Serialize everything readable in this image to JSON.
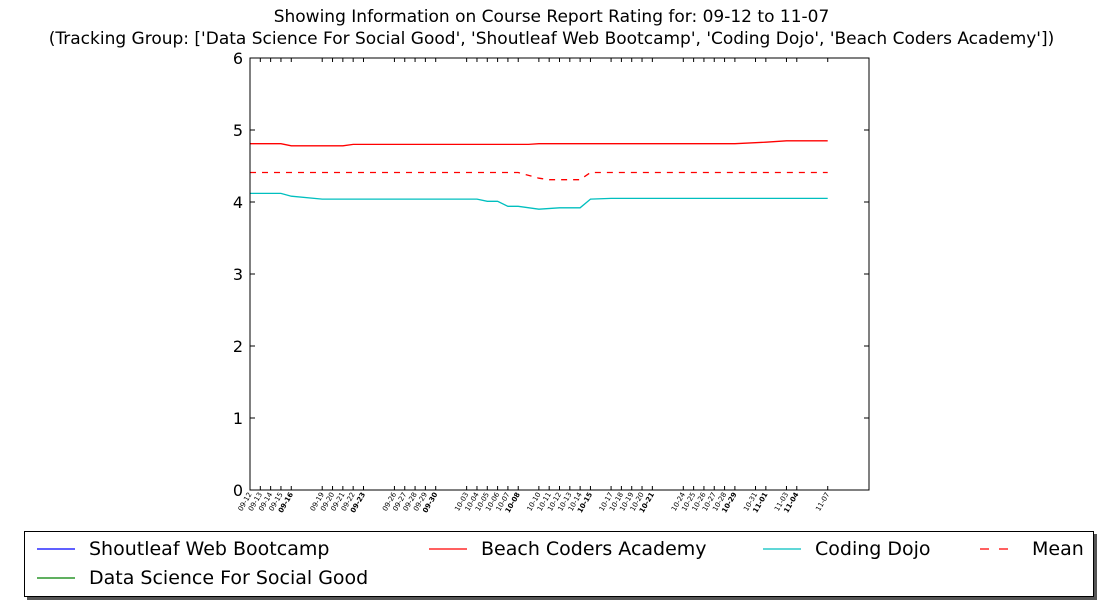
{
  "chart_data": {
    "type": "line",
    "title": "Showing Information on Course Report Rating for: 09-12 to 11-07",
    "subtitle": "(Tracking Group: ['Data Science For Social Good', 'Shoutleaf Web Bootcamp', 'Coding Dojo', 'Beach Coders Academy'])",
    "ylim": [
      0,
      6
    ],
    "yticks": [
      0,
      1,
      2,
      3,
      4,
      5,
      6
    ],
    "xlim": [
      0,
      60
    ],
    "x_ticks": [
      {
        "x": 0,
        "label": "09-12",
        "major": false
      },
      {
        "x": 1,
        "label": "09-13",
        "major": false
      },
      {
        "x": 2,
        "label": "09-14",
        "major": false
      },
      {
        "x": 3,
        "label": "09-15",
        "major": false
      },
      {
        "x": 4,
        "label": "09-16",
        "major": true
      },
      {
        "x": 7,
        "label": "09-19",
        "major": false
      },
      {
        "x": 8,
        "label": "09-20",
        "major": false
      },
      {
        "x": 9,
        "label": "09-21",
        "major": false
      },
      {
        "x": 10,
        "label": "09-22",
        "major": false
      },
      {
        "x": 11,
        "label": "09-23",
        "major": true
      },
      {
        "x": 14,
        "label": "09-26",
        "major": false
      },
      {
        "x": 15,
        "label": "09-27",
        "major": false
      },
      {
        "x": 16,
        "label": "09-28",
        "major": false
      },
      {
        "x": 17,
        "label": "09-29",
        "major": false
      },
      {
        "x": 18,
        "label": "09-30",
        "major": true
      },
      {
        "x": 21,
        "label": "10-03",
        "major": false
      },
      {
        "x": 22,
        "label": "10-04",
        "major": false
      },
      {
        "x": 23,
        "label": "10-05",
        "major": false
      },
      {
        "x": 24,
        "label": "10-06",
        "major": false
      },
      {
        "x": 25,
        "label": "10-07",
        "major": false
      },
      {
        "x": 26,
        "label": "10-08",
        "major": true
      },
      {
        "x": 28,
        "label": "10-10",
        "major": false
      },
      {
        "x": 29,
        "label": "10-11",
        "major": false
      },
      {
        "x": 30,
        "label": "10-12",
        "major": false
      },
      {
        "x": 31,
        "label": "10-13",
        "major": false
      },
      {
        "x": 32,
        "label": "10-14",
        "major": false
      },
      {
        "x": 33,
        "label": "10-15",
        "major": true
      },
      {
        "x": 35,
        "label": "10-17",
        "major": false
      },
      {
        "x": 36,
        "label": "10-18",
        "major": false
      },
      {
        "x": 37,
        "label": "10-19",
        "major": false
      },
      {
        "x": 38,
        "label": "10-20",
        "major": false
      },
      {
        "x": 39,
        "label": "10-21",
        "major": true
      },
      {
        "x": 42,
        "label": "10-24",
        "major": false
      },
      {
        "x": 43,
        "label": "10-25",
        "major": false
      },
      {
        "x": 44,
        "label": "10-26",
        "major": false
      },
      {
        "x": 45,
        "label": "10-27",
        "major": false
      },
      {
        "x": 46,
        "label": "10-28",
        "major": false
      },
      {
        "x": 47,
        "label": "10-29",
        "major": true
      },
      {
        "x": 49,
        "label": "10-31",
        "major": false
      },
      {
        "x": 50,
        "label": "11-01",
        "major": true
      },
      {
        "x": 52,
        "label": "11-03",
        "major": false
      },
      {
        "x": 53,
        "label": "11-04",
        "major": true
      },
      {
        "x": 56,
        "label": "11-07",
        "major": false
      }
    ],
    "series": [
      {
        "name": "Shoutleaf Web Bootcamp",
        "color": "#0000ff",
        "dash": false,
        "points": []
      },
      {
        "name": "Beach Coders Academy",
        "color": "#ff0000",
        "dash": false,
        "points": [
          [
            0,
            4.81
          ],
          [
            3,
            4.81
          ],
          [
            4,
            4.78
          ],
          [
            9,
            4.78
          ],
          [
            10,
            4.8
          ],
          [
            27,
            4.8
          ],
          [
            28,
            4.81
          ],
          [
            47,
            4.81
          ],
          [
            50,
            4.83
          ],
          [
            52,
            4.85
          ],
          [
            56,
            4.85
          ]
        ]
      },
      {
        "name": "Coding Dojo",
        "color": "#00bfbf",
        "dash": false,
        "points": [
          [
            0,
            4.12
          ],
          [
            3,
            4.12
          ],
          [
            4,
            4.08
          ],
          [
            7,
            4.04
          ],
          [
            22,
            4.04
          ],
          [
            23,
            4.01
          ],
          [
            24,
            4.01
          ],
          [
            25,
            3.94
          ],
          [
            26,
            3.94
          ],
          [
            28,
            3.9
          ],
          [
            30,
            3.92
          ],
          [
            32,
            3.92
          ],
          [
            33,
            4.04
          ],
          [
            35,
            4.05
          ],
          [
            56,
            4.05
          ]
        ]
      },
      {
        "name": "Data Science For Social Good",
        "color": "#008000",
        "dash": false,
        "points": []
      },
      {
        "name": "Mean",
        "color": "#ff0000",
        "dash": true,
        "points": [
          [
            0,
            4.41
          ],
          [
            26,
            4.41
          ],
          [
            28,
            4.33
          ],
          [
            29,
            4.31
          ],
          [
            32,
            4.31
          ],
          [
            33,
            4.41
          ],
          [
            56,
            4.41
          ]
        ]
      }
    ],
    "legend": {
      "placement": "bottom",
      "entries": [
        {
          "label": "Shoutleaf Web Bootcamp",
          "color": "#0000ff",
          "dash": false
        },
        {
          "label": "Beach Coders Academy",
          "color": "#ff0000",
          "dash": false
        },
        {
          "label": "Coding Dojo",
          "color": "#00bfbf",
          "dash": false
        },
        {
          "label": "Mean",
          "color": "#ff0000",
          "dash": true
        },
        {
          "label": "Data Science For Social Good",
          "color": "#008000",
          "dash": false
        }
      ]
    }
  }
}
